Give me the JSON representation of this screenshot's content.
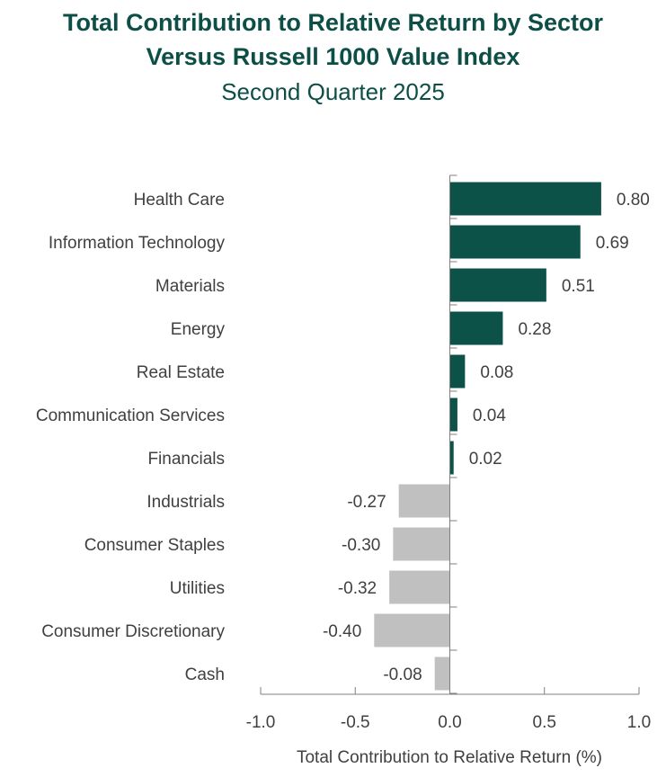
{
  "chart_data": {
    "type": "bar",
    "orientation": "horizontal",
    "title": "Total Contribution to Relative Return by Sector Versus Russell 1000 Value Index",
    "title_lines": [
      "Total Contribution to Relative Return by Sector",
      "Versus Russell 1000 Value Index"
    ],
    "subtitle": "Second Quarter 2025",
    "xlabel": "Total Contribution to Relative Return (%)",
    "ylabel": "",
    "xlim": [
      -1.0,
      1.0
    ],
    "xticks": [
      -1.0,
      -0.5,
      0.0,
      0.5,
      1.0
    ],
    "xtick_labels": [
      "-1.0",
      "-0.5",
      "0.0",
      "0.5",
      "1.0"
    ],
    "grid": false,
    "categories": [
      "Health Care",
      "Information Technology",
      "Materials",
      "Energy",
      "Real Estate",
      "Communication Services",
      "Financials",
      "Industrials",
      "Consumer Staples",
      "Utilities",
      "Consumer Discretionary",
      "Cash"
    ],
    "values": [
      0.8,
      0.69,
      0.51,
      0.28,
      0.08,
      0.04,
      0.02,
      -0.27,
      -0.3,
      -0.32,
      -0.4,
      -0.08
    ],
    "value_labels": [
      "0.80",
      "0.69",
      "0.51",
      "0.28",
      "0.08",
      "0.04",
      "0.02",
      "-0.27",
      "-0.30",
      "-0.32",
      "-0.40",
      "-0.08"
    ],
    "colors": {
      "positive": "#0d5249",
      "negative": "#c0c0c0",
      "axis": "#7f7f7f",
      "text": "#404040",
      "title": "#0d4f47"
    }
  }
}
